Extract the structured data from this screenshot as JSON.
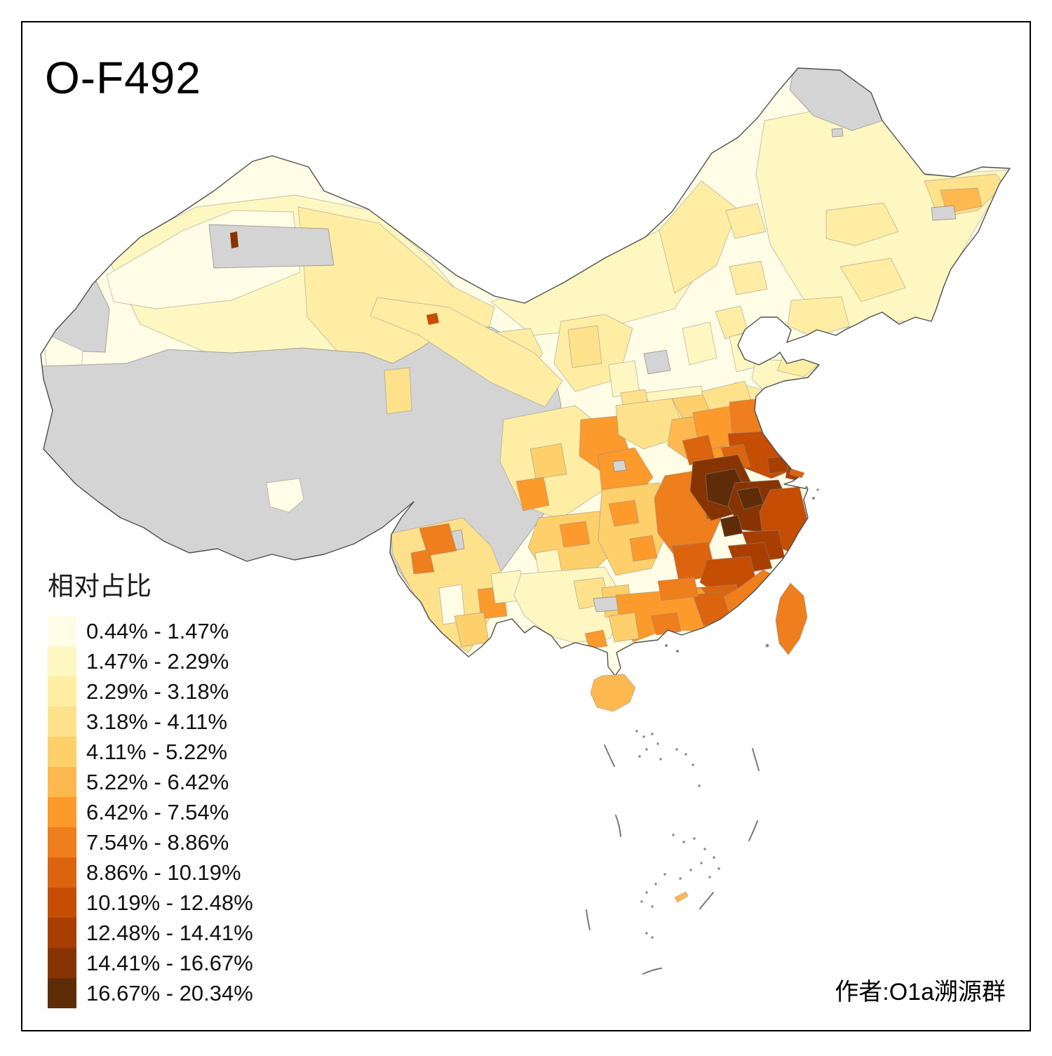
{
  "page": {
    "background": "#ffffff",
    "border_color": "#000000"
  },
  "title": "O-F492",
  "author": "作者:O1a溯源群",
  "legend": {
    "title": "相对占比",
    "classes": [
      {
        "range": "0.44% - 1.47%",
        "color": "#FFFDE5"
      },
      {
        "range": "1.47% - 2.29%",
        "color": "#FFF7C1"
      },
      {
        "range": "2.29% - 3.18%",
        "color": "#FFEDA4"
      },
      {
        "range": "3.18% - 4.11%",
        "color": "#FEE18B"
      },
      {
        "range": "4.11% - 5.22%",
        "color": "#FDD06C"
      },
      {
        "range": "5.22% - 6.42%",
        "color": "#FDB950"
      },
      {
        "range": "6.42% - 7.54%",
        "color": "#FD9A2C"
      },
      {
        "range": "7.54% - 8.86%",
        "color": "#EF7E1D"
      },
      {
        "range": "8.86% - 10.19%",
        "color": "#DC640F"
      },
      {
        "range": "10.19% - 12.48%",
        "color": "#C54D04"
      },
      {
        "range": "12.48% - 14.41%",
        "color": "#A93E03"
      },
      {
        "range": "14.41% - 16.67%",
        "color": "#873403"
      },
      {
        "range": "16.67% - 20.34%",
        "color": "#5E2C07"
      }
    ]
  },
  "map": {
    "nodata_color": "#D4D4D4",
    "outline_color": "#4F4F4F",
    "sea_dash_color": "#787878",
    "regions": {
      "mainland-base": 1,
      "xj-base": 2,
      "xj-east": 3,
      "xj-cream": 1,
      "xj-grey-w": 0,
      "xj-cream-sw": 1,
      "karamay-grey": 0,
      "shihezi": 12,
      "im-west": 2,
      "im-center": 3,
      "im-east": 3,
      "chifeng": 3,
      "ne-base": 2,
      "mohe-grey": 0,
      "jiamusi-c4": 4,
      "jiamusi-c6": 6,
      "ne-grey-1": 0,
      "ne-grey-2": 0,
      "harbin": 3,
      "jilin": 3,
      "liaoning": 3,
      "plateau-grey": 0,
      "xining-c3": 3,
      "xining-orange": 7,
      "qaidam": 4,
      "lhasa": 1,
      "hexi": 3,
      "jiayuguan": 10,
      "ningxia": 3,
      "ningxia-c4": 4,
      "beijing": 3,
      "hebei": 2,
      "shanxi": 2,
      "shanxi-grey": 0,
      "shandong": 2,
      "shandong-pen": 3,
      "shandong-s": 3,
      "henan": 2,
      "shaanxi": 2,
      "xian": 4,
      "sichuan-basin": 3,
      "ne-sichuan": 7,
      "chengdu-s": 7,
      "sichuan-c5": 5,
      "chongqing": 7,
      "cq-grey": 0,
      "hubei-w": 4,
      "hubei-e": 6,
      "wuhan": 7,
      "huainan": 5,
      "yunnan": 4,
      "yn-nw-grey": 0,
      "yn-west-c8a": 8,
      "yn-west-c8b": 8,
      "yn-cream": 1,
      "kunming": 7,
      "yn-south": 5,
      "yn-east": 2,
      "guizhou": 5,
      "guizhou-c7": 7,
      "guizhou-c2": 2,
      "hunan": 5,
      "hunan-c7a": 7,
      "hunan-c7b": 7,
      "guangxi": 2,
      "gx-c4": 4,
      "gx-c5": 5,
      "gx-grey": 0,
      "gx-coast": 7,
      "jiangxi": 8,
      "jiangxi-ne": 10,
      "jiangxi-s": 9,
      "anhui-n": 4,
      "anhui-mid": 7,
      "hefei": 9,
      "jiangsu-n": 8,
      "jiangsu-s": 10,
      "changzhou": 11,
      "nanjing": 9,
      "shanghai": 11,
      "anhui-s-c12": 12,
      "anhui-s-c13": 13,
      "zhejiang": 12,
      "zj-c13a": 13,
      "zj-c13b": 13,
      "zj-coast": 10,
      "zj-south": 11,
      "fujian-n": 11,
      "fujian-m": 10,
      "fujian-s": 9,
      "fujian-coast": 8,
      "guangdong": 7,
      "gd-e": 9,
      "gd-n": 8,
      "gd-delta": 8,
      "gd-w": 5,
      "hainan": 6,
      "taiwan": 8,
      "chongming": 9,
      "scs-islet": 6
    }
  },
  "chart_data": {
    "type": "choropleth",
    "title": "O-F492",
    "legend_title": "相对占比",
    "unit": "%",
    "geography": "China, prefecture-level divisions",
    "class_breaks": [
      0.44,
      1.47,
      2.29,
      3.18,
      4.11,
      5.22,
      6.42,
      7.54,
      8.86,
      10.19,
      12.48,
      14.41,
      16.67,
      20.34
    ],
    "palette": [
      "#FFFDE5",
      "#FFF7C1",
      "#FFEDA4",
      "#FEE18B",
      "#FDD06C",
      "#FDB950",
      "#FD9A2C",
      "#EF7E1D",
      "#DC640F",
      "#C54D04",
      "#A93E03",
      "#873403",
      "#5E2C07"
    ],
    "no_data_color": "#D4D4D4",
    "annotations": [
      "作者:O1a溯源群"
    ],
    "pattern_summary": "Highest values (16.67%-20.34%) in southern Anhui / northern Zhejiang; dark belt across Jiangsu-Shanghai-Zhejiang-Fujian; medium oranges across Hunan, Jiangxi, Guangdong, Sichuan basin, Yunnan patches; pale yellows in north and northeast China and Xinjiang; no-data grey over Tibet, Qinghai, southern Xinjiang; Hainan 5.22%-6.42%; Taiwan 7.54%-8.86%."
  }
}
